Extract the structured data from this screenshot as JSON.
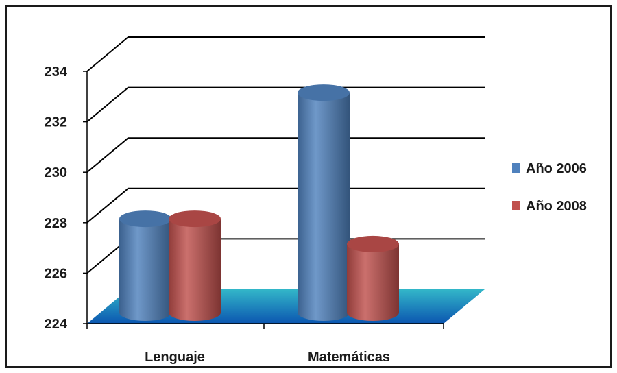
{
  "chart_data": {
    "type": "bar",
    "title": "",
    "xlabel": "",
    "ylabel": "",
    "categories": [
      "Lenguaje",
      "Matemáticas"
    ],
    "series": [
      {
        "name": "Año 2006",
        "values": [
          228.1,
          233.1
        ],
        "color": "#4f81bd"
      },
      {
        "name": "Año 2008",
        "values": [
          228.1,
          227.1
        ],
        "color": "#c0504d"
      }
    ],
    "ylim": [
      224,
      234
    ],
    "yticks": [
      "224",
      "226",
      "228",
      "230",
      "232",
      "234"
    ],
    "grid": true,
    "legend": "right",
    "floor_color": "#1f8fb6"
  }
}
